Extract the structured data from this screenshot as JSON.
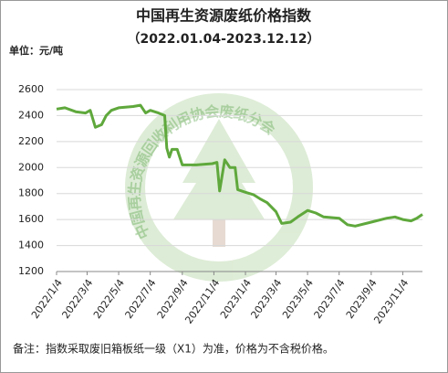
{
  "chart_data": {
    "type": "line",
    "title": "中国再生资源废纸价格指数",
    "subtitle": "（2022.01.04-2023.12.12）",
    "unit_label": "单位：元/吨",
    "footnote": "备注：指数采取废旧箱板纸一级（X1）为准，价格为不含税价格。",
    "watermark": "中国再生资源回收利用协会废纸分会",
    "x": [
      "2022/1/4",
      "2022/1/20",
      "2022/2/10",
      "2022/3/1",
      "2022/3/10",
      "2022/3/20",
      "2022/4/1",
      "2022/4/10",
      "2022/4/20",
      "2022/5/4",
      "2022/6/1",
      "2022/6/15",
      "2022/6/25",
      "2022/7/4",
      "2022/7/20",
      "2022/8/1",
      "2022/8/5",
      "2022/8/10",
      "2022/8/15",
      "2022/8/25",
      "2022/9/4",
      "2022/10/1",
      "2022/11/1",
      "2022/11/10",
      "2022/11/15",
      "2022/11/25",
      "2022/12/5",
      "2022/12/15",
      "2022/12/20",
      "2023/1/4",
      "2023/1/20",
      "2023/2/1",
      "2023/2/15",
      "2023/3/4",
      "2023/3/15",
      "2023/4/1",
      "2023/4/15",
      "2023/5/4",
      "2023/5/20",
      "2023/6/4",
      "2023/7/4",
      "2023/7/20",
      "2023/8/4",
      "2023/9/4",
      "2023/10/4",
      "2023/10/20",
      "2023/11/4",
      "2023/11/20",
      "2023/12/1",
      "2023/12/12"
    ],
    "series": [
      {
        "name": "废纸价格指数",
        "color": "#5fa83c",
        "values": [
          2450,
          2460,
          2430,
          2420,
          2440,
          2310,
          2330,
          2400,
          2440,
          2460,
          2470,
          2480,
          2420,
          2440,
          2420,
          2400,
          2150,
          2080,
          2140,
          2140,
          2020,
          2020,
          2030,
          2040,
          1820,
          2060,
          2000,
          2000,
          1830,
          1810,
          1790,
          1760,
          1730,
          1660,
          1570,
          1580,
          1620,
          1670,
          1650,
          1620,
          1610,
          1560,
          1550,
          1580,
          1610,
          1620,
          1600,
          1590,
          1610,
          1640
        ]
      }
    ],
    "xlim": [
      "2022/1/4",
      "2023/12/12"
    ],
    "xticks": [
      "2022/1/4",
      "2022/3/4",
      "2022/5/4",
      "2022/7/4",
      "2022/9/4",
      "2022/11/4",
      "2023/1/4",
      "2023/3/4",
      "2023/5/4",
      "2023/7/4",
      "2023/9/4",
      "2023/11/4"
    ],
    "ylim": [
      1200,
      2600
    ],
    "yticks": [
      1200,
      1400,
      1600,
      1800,
      2000,
      2200,
      2400,
      2600
    ],
    "grid": true
  }
}
